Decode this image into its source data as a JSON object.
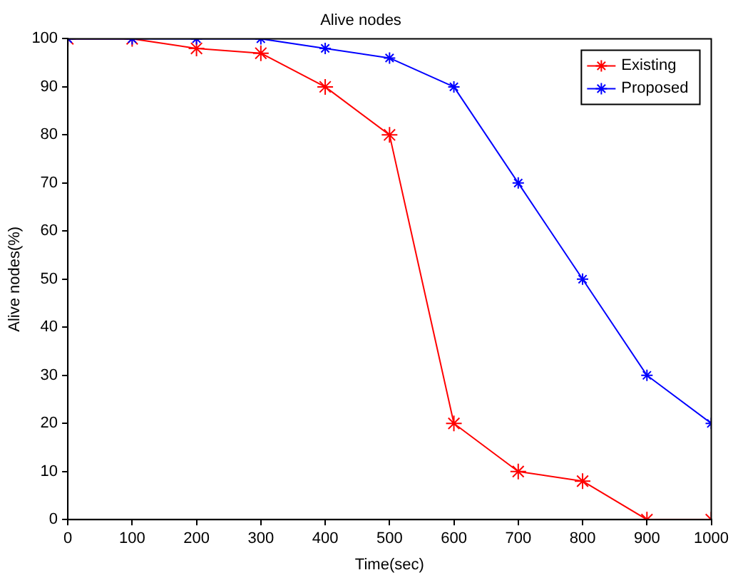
{
  "chart_data": {
    "type": "line",
    "title": "Alive nodes",
    "xlabel": "Time(sec)",
    "ylabel": "Alive nodes(%)",
    "x": [
      0,
      100,
      200,
      300,
      400,
      500,
      600,
      700,
      800,
      900,
      1000
    ],
    "series": [
      {
        "name": "Existing",
        "color": "#ff0000",
        "values": [
          100,
          100,
          98,
          97,
          90,
          80,
          20,
          10,
          8,
          0,
          0
        ]
      },
      {
        "name": "Proposed",
        "color": "#0000ff",
        "values": [
          100,
          100,
          100,
          100,
          98,
          96,
          90,
          70,
          50,
          30,
          20
        ]
      }
    ],
    "xlim": [
      0,
      1000
    ],
    "xticks": [
      0,
      100,
      200,
      300,
      400,
      500,
      600,
      700,
      800,
      900,
      1000
    ],
    "ylim": [
      0,
      100
    ],
    "yticks": [
      0,
      10,
      20,
      30,
      40,
      50,
      60,
      70,
      80,
      90,
      100
    ],
    "grid": false,
    "legend": "top right",
    "marker": "cross",
    "line_style": "solid"
  }
}
